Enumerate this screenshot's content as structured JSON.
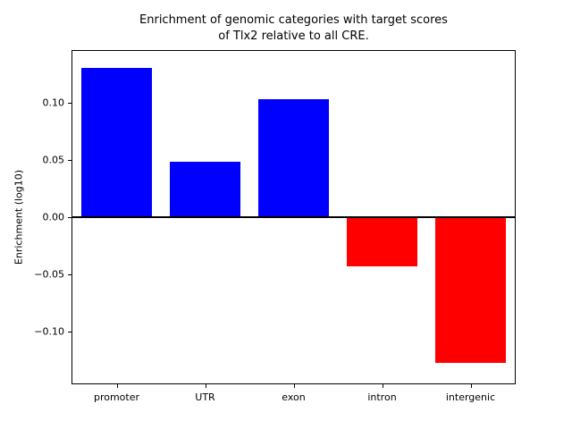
{
  "figure": {
    "background": "#ffffff"
  },
  "chart_data": {
    "type": "bar",
    "title": "Enrichment of genomic categories with target scores\nof Tlx2 relative to all CRE.",
    "categories": [
      "promoter",
      "UTR",
      "exon",
      "intron",
      "intergenic"
    ],
    "values": [
      0.13,
      0.048,
      0.103,
      -0.043,
      -0.127
    ],
    "xlabel": "",
    "ylabel": "Enrichment (log10)",
    "ylim": [
      -0.145,
      0.145
    ],
    "yticks": [
      0.1,
      0.05,
      0.0,
      -0.05,
      -0.1
    ],
    "colors": {
      "positive_bar": "#0000ff",
      "negative_bar": "#ff0000",
      "axis": "#000000",
      "zero_line": "#000000"
    },
    "grid": false,
    "legend": false,
    "bar_width_fraction": 0.8
  }
}
